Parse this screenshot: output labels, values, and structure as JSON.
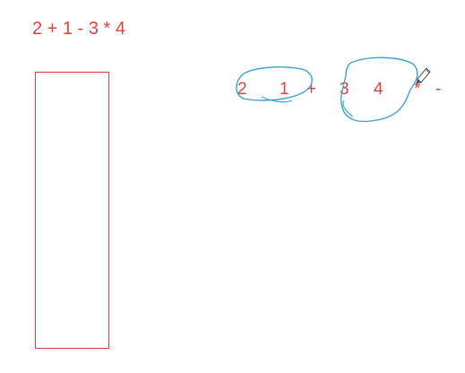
{
  "expression": "2 + 1 - 3 * 4",
  "postfix_tokens": [
    "2",
    "1",
    "+",
    "3",
    "4",
    "*",
    "-"
  ],
  "colors": {
    "text": "#e0443e",
    "stack_border": "#e0443e",
    "scribble": "#3aa7d6"
  },
  "icons": [
    "pencil-icon"
  ]
}
